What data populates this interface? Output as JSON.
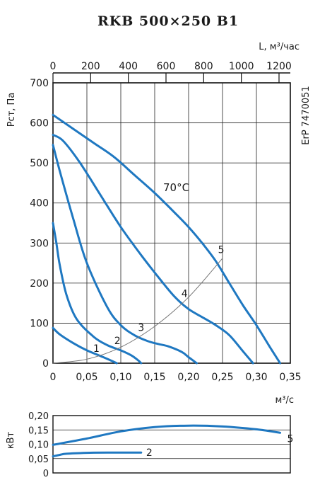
{
  "chart_data": [
    {
      "type": "line",
      "title": "RKB 500×250 B1",
      "ylabel": "Pст, Па",
      "xlabel": "м³/с",
      "x2label": "L, м³/час",
      "side_label": "ErP 7470051",
      "annotation": "70°C",
      "xlim": [
        0,
        0.35
      ],
      "ylim": [
        0,
        700
      ],
      "x2lim": [
        0,
        1260
      ],
      "x_ticks": [
        "0",
        "0,05",
        "0,10",
        "0,15",
        "0,20",
        "0,25",
        "0,30",
        "0,35"
      ],
      "y_ticks": [
        "0",
        "100",
        "200",
        "300",
        "400",
        "500",
        "600",
        "700"
      ],
      "x2_ticks": [
        "0",
        "200",
        "400",
        "600",
        "800",
        "1000",
        "1200"
      ],
      "grid": true,
      "series": [
        {
          "name": "1",
          "x": [
            0,
            0.01,
            0.03,
            0.05,
            0.07,
            0.085,
            0.094
          ],
          "y": [
            88,
            72,
            50,
            32,
            18,
            7,
            0
          ]
        },
        {
          "name": "2",
          "x": [
            0,
            0.005,
            0.01,
            0.02,
            0.035,
            0.06,
            0.08,
            0.1,
            0.115,
            0.125,
            0.13
          ],
          "y": [
            350,
            300,
            245,
            170,
            110,
            66,
            45,
            32,
            20,
            8,
            0
          ]
        },
        {
          "name": "3",
          "x": [
            0,
            0.01,
            0.03,
            0.05,
            0.08,
            0.1,
            0.12,
            0.14,
            0.155,
            0.17,
            0.19,
            0.2,
            0.212
          ],
          "y": [
            545,
            480,
            360,
            250,
            140,
            95,
            70,
            55,
            48,
            42,
            28,
            15,
            0
          ]
        },
        {
          "name": "4",
          "x": [
            0,
            0.015,
            0.04,
            0.07,
            0.1,
            0.13,
            0.16,
            0.18,
            0.2,
            0.22,
            0.24,
            0.26,
            0.28,
            0.295
          ],
          "y": [
            570,
            555,
            500,
            420,
            340,
            270,
            205,
            165,
            135,
            115,
            95,
            70,
            30,
            0
          ]
        },
        {
          "name": "5",
          "x": [
            0,
            0.03,
            0.06,
            0.09,
            0.12,
            0.15,
            0.18,
            0.2,
            0.22,
            0.24,
            0.26,
            0.28,
            0.3,
            0.32,
            0.335
          ],
          "y": [
            620,
            585,
            550,
            515,
            470,
            425,
            375,
            340,
            300,
            255,
            200,
            145,
            95,
            40,
            0
          ]
        },
        {
          "name": "",
          "x": [
            0,
            0.05,
            0.1,
            0.15,
            0.2,
            0.25
          ],
          "y": [
            0,
            10,
            40,
            92,
            165,
            262
          ]
        }
      ],
      "curve_labels": [
        "1",
        "2",
        "3",
        "4",
        "5"
      ],
      "colors": {
        "curve": "#1f78c1",
        "system": "#777777",
        "grid": "#222222",
        "axis": "#111111"
      }
    },
    {
      "type": "line",
      "ylabel": "кВт",
      "xlim": [
        0,
        0.35
      ],
      "ylim": [
        0,
        0.2
      ],
      "y_ticks": [
        "0",
        "0,05",
        "0,10",
        "0,15",
        "0,20"
      ],
      "grid": true,
      "series": [
        {
          "name": "5",
          "x": [
            0,
            0.05,
            0.1,
            0.15,
            0.2,
            0.25,
            0.3,
            0.335
          ],
          "y": [
            0.098,
            0.12,
            0.145,
            0.16,
            0.165,
            0.162,
            0.152,
            0.14
          ]
        },
        {
          "name": "2",
          "x": [
            0,
            0.01,
            0.02,
            0.05,
            0.08,
            0.1,
            0.13
          ],
          "y": [
            0.058,
            0.063,
            0.067,
            0.07,
            0.071,
            0.071,
            0.071
          ]
        }
      ],
      "curve_labels": [
        "5",
        "2"
      ],
      "colors": {
        "curve": "#1f78c1",
        "grid": "#222222",
        "axis": "#111111"
      }
    }
  ]
}
